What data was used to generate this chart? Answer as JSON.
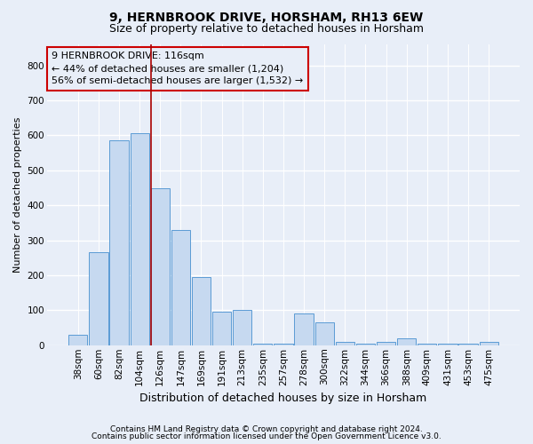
{
  "title1": "9, HERNBROOK DRIVE, HORSHAM, RH13 6EW",
  "title2": "Size of property relative to detached houses in Horsham",
  "xlabel": "Distribution of detached houses by size in Horsham",
  "ylabel": "Number of detached properties",
  "footnote1": "Contains HM Land Registry data © Crown copyright and database right 2024.",
  "footnote2": "Contains public sector information licensed under the Open Government Licence v3.0.",
  "bar_labels": [
    "38sqm",
    "60sqm",
    "82sqm",
    "104sqm",
    "126sqm",
    "147sqm",
    "169sqm",
    "191sqm",
    "213sqm",
    "235sqm",
    "257sqm",
    "278sqm",
    "300sqm",
    "322sqm",
    "344sqm",
    "366sqm",
    "388sqm",
    "409sqm",
    "431sqm",
    "453sqm",
    "475sqm"
  ],
  "bar_values": [
    30,
    265,
    585,
    605,
    450,
    330,
    195,
    95,
    100,
    5,
    5,
    90,
    65,
    10,
    5,
    10,
    20,
    5,
    5,
    5,
    10
  ],
  "bar_color": "#c6d9f0",
  "bar_edge_color": "#5b9bd5",
  "background_color": "#e8eef8",
  "grid_color": "#ffffff",
  "annotation_text": "9 HERNBROOK DRIVE: 116sqm\n← 44% of detached houses are smaller (1,204)\n56% of semi-detached houses are larger (1,532) →",
  "annotation_box_color": "#cc0000",
  "vline_color": "#aa0000",
  "ylim": [
    0,
    860
  ],
  "yticks": [
    0,
    100,
    200,
    300,
    400,
    500,
    600,
    700,
    800
  ],
  "title1_fontsize": 10,
  "title2_fontsize": 9,
  "xlabel_fontsize": 9,
  "ylabel_fontsize": 8,
  "tick_fontsize": 7.5,
  "annotation_fontsize": 8
}
